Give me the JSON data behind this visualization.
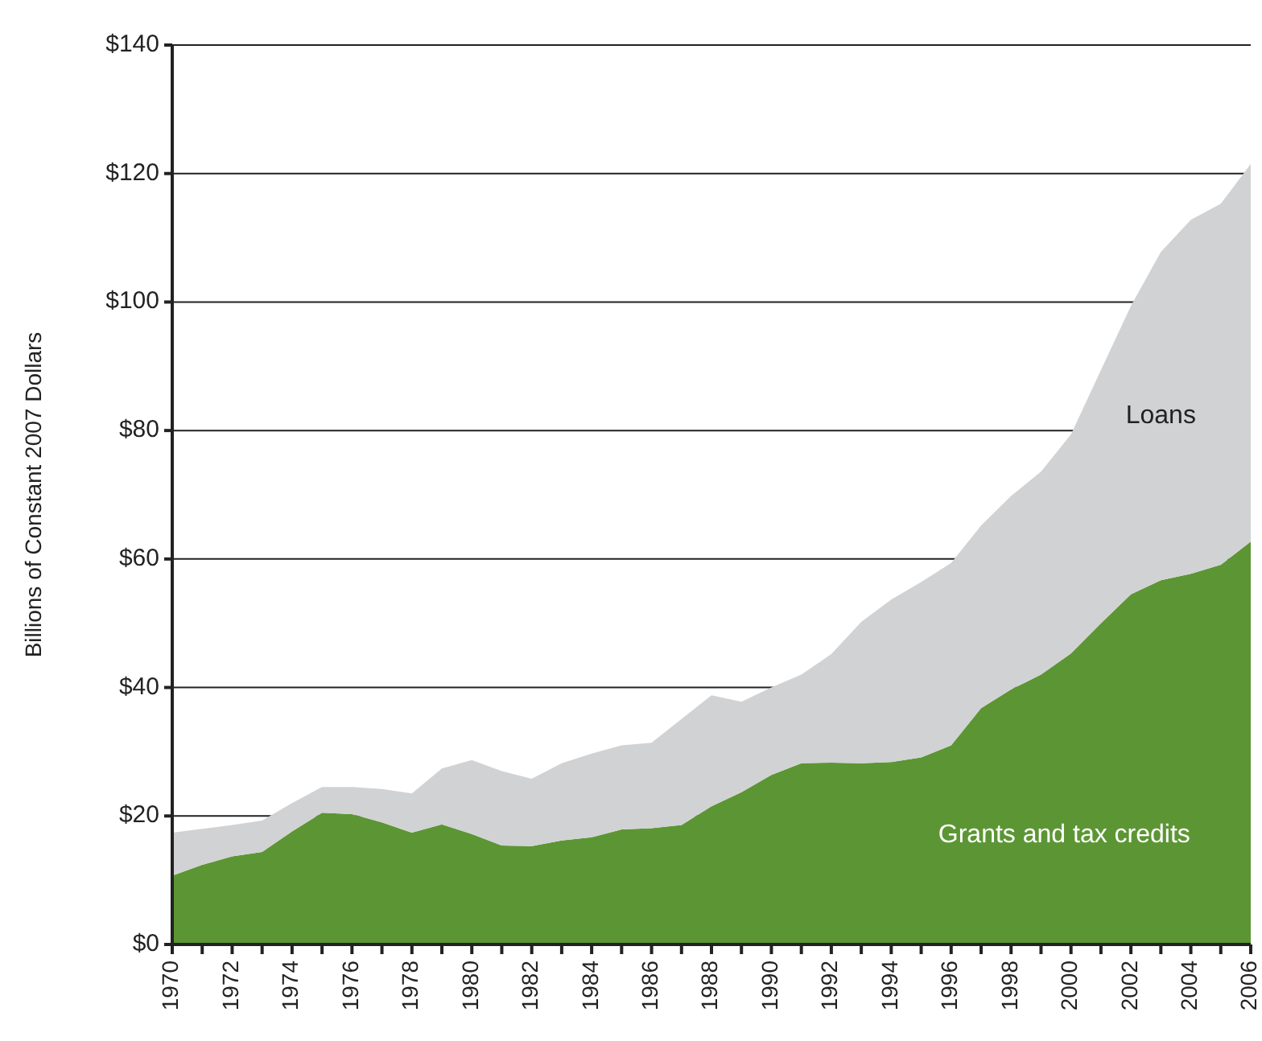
{
  "chart_data": {
    "type": "area",
    "stacked": true,
    "ylabel": "Billions of Constant 2007 Dollars",
    "x": [
      1970,
      1971,
      1972,
      1973,
      1974,
      1975,
      1976,
      1977,
      1978,
      1979,
      1980,
      1981,
      1982,
      1983,
      1984,
      1985,
      1986,
      1987,
      1988,
      1989,
      1990,
      1991,
      1992,
      1993,
      1994,
      1995,
      1996,
      1997,
      1998,
      1999,
      2000,
      2001,
      2002,
      2003,
      2004,
      2005,
      2006
    ],
    "series": [
      {
        "name": "Grants and tax credits",
        "color": "#5c9634",
        "values": [
          10.7,
          12.4,
          13.7,
          14.4,
          17.6,
          20.5,
          20.3,
          19.0,
          17.4,
          18.7,
          17.2,
          15.4,
          15.3,
          16.2,
          16.7,
          17.9,
          18.1,
          18.6,
          21.5,
          23.7,
          26.4,
          28.2,
          28.3,
          28.2,
          28.4,
          29.1,
          31.0,
          36.8,
          39.7,
          42.0,
          45.3,
          50.0,
          54.5,
          56.7,
          57.7,
          59.1,
          62.7
        ]
      },
      {
        "name": "Loans",
        "color": "#d1d2d4",
        "values": [
          6.7,
          5.6,
          4.9,
          4.9,
          4.4,
          4.0,
          4.2,
          5.2,
          6.1,
          8.7,
          11.5,
          11.6,
          10.5,
          12.0,
          13.0,
          13.1,
          13.3,
          16.5,
          17.3,
          14.1,
          13.6,
          13.8,
          16.9,
          22.0,
          25.3,
          27.3,
          28.4,
          28.4,
          30.1,
          31.6,
          34.1,
          39.4,
          44.9,
          51.1,
          55.1,
          56.2,
          58.8
        ]
      }
    ],
    "xlim": [
      1970,
      2006
    ],
    "xticks": [
      1970,
      {
        "value": 1971,
        "label": null
      },
      1972,
      {
        "value": 1973,
        "label": null
      },
      1974,
      {
        "value": 1975,
        "label": null
      },
      1976,
      {
        "value": 1977,
        "label": null
      },
      1978,
      {
        "value": 1979,
        "label": null
      },
      1980,
      {
        "value": 1981,
        "label": null
      },
      1982,
      {
        "value": 1983,
        "label": null
      },
      1984,
      {
        "value": 1985,
        "label": null
      },
      1986,
      {
        "value": 1987,
        "label": null
      },
      1988,
      {
        "value": 1989,
        "label": null
      },
      1990,
      {
        "value": 1991,
        "label": null
      },
      1992,
      {
        "value": 1993,
        "label": null
      },
      1994,
      {
        "value": 1995,
        "label": null
      },
      1996,
      {
        "value": 1997,
        "label": null
      },
      1998,
      {
        "value": 1999,
        "label": null
      },
      2000,
      {
        "value": 2001,
        "label": null
      },
      2002,
      {
        "value": 2003,
        "label": null
      },
      2004,
      {
        "value": 2005,
        "label": null
      },
      2006
    ],
    "ylim": [
      0,
      140
    ],
    "yticks": [
      {
        "value": 0,
        "label": "$0"
      },
      {
        "value": 20,
        "label": "$20"
      },
      {
        "value": 40,
        "label": "$40"
      },
      {
        "value": 60,
        "label": "$60"
      },
      {
        "value": 80,
        "label": "$80"
      },
      {
        "value": 100,
        "label": "$100"
      },
      {
        "value": 120,
        "label": "$120"
      },
      {
        "value": 140,
        "label": "$140"
      }
    ],
    "grid": "y",
    "legend": false
  }
}
